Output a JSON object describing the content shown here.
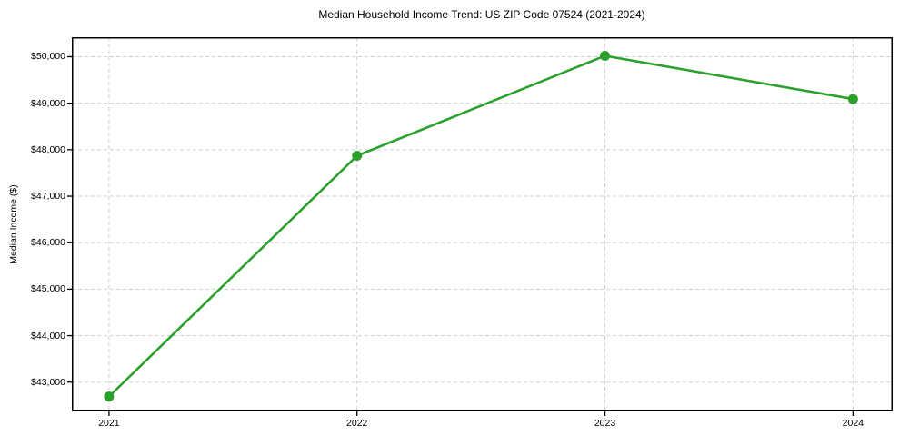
{
  "chart_data": {
    "type": "line",
    "title": "Median Household Income Trend: US ZIP Code 07524 (2021-2024)",
    "xlabel": "",
    "ylabel": "Median Income ($)",
    "x": [
      2021,
      2022,
      2023,
      2024
    ],
    "xtick_labels": [
      "2021",
      "2022",
      "2023",
      "2024"
    ],
    "series": [
      {
        "name": "Median Household Income",
        "values": [
          42690,
          47870,
          50020,
          49090
        ],
        "color": "#2ca02c",
        "marker": "circle",
        "marker_size": 11,
        "line_width": 2.6
      }
    ],
    "yticks": [
      43000,
      44000,
      45000,
      46000,
      47000,
      48000,
      49000,
      50000
    ],
    "ytick_labels": [
      "$43,000",
      "$44,000",
      "$45,000",
      "$46,000",
      "$47,000",
      "$48,000",
      "$49,000",
      "$50,000"
    ],
    "xlim": [
      2020.85,
      2024.16
    ],
    "ylim": [
      42370,
      50420
    ],
    "grid": {
      "visible": true,
      "style": "dashed",
      "axis": "both"
    },
    "legend": {
      "visible": false
    },
    "colors": {
      "line": "#2ca02c",
      "grid": "#cfcfcf",
      "spine": "#000000",
      "tick": "#000000",
      "text": "#000000",
      "background": "#ffffff"
    }
  }
}
